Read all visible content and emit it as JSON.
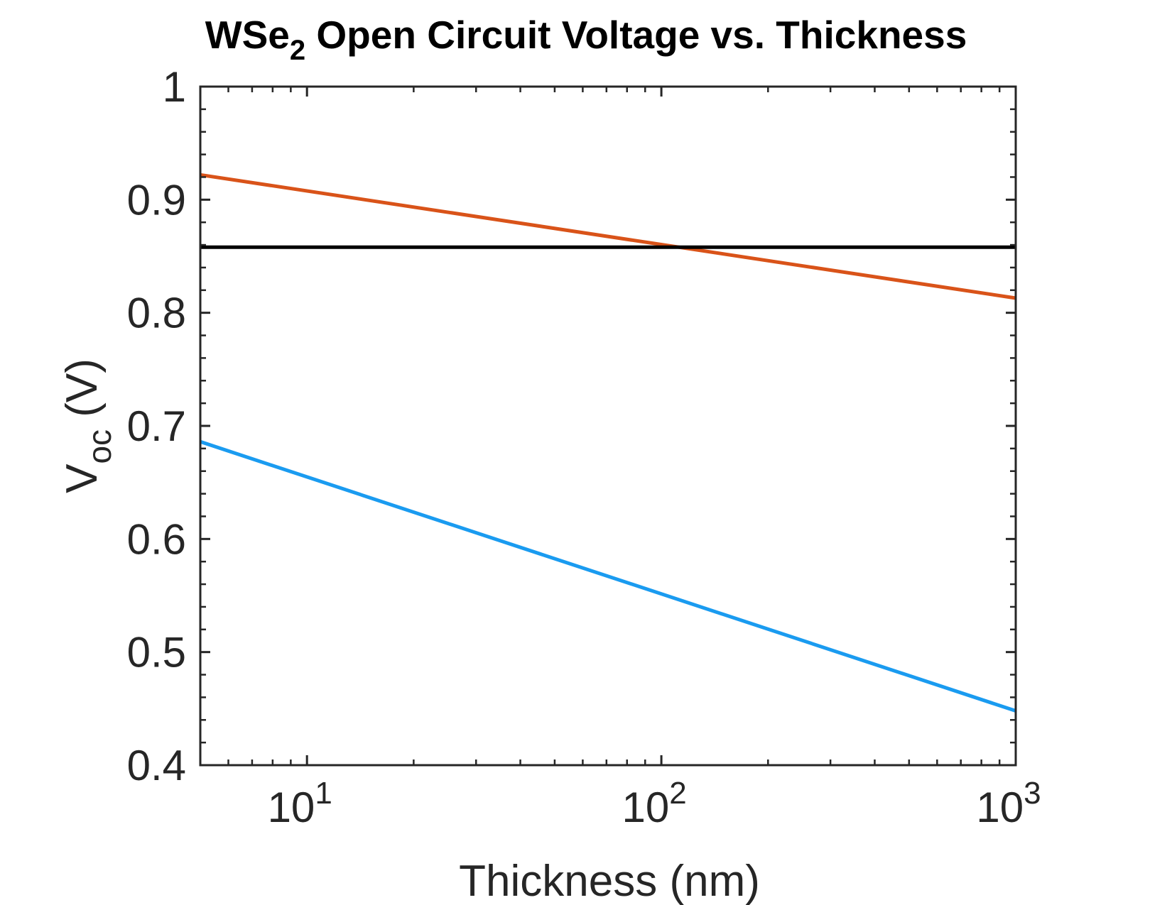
{
  "chart_data": {
    "type": "line",
    "title": {
      "prefix": "WSe",
      "subscript": "2",
      "suffix": " Open Circuit Voltage vs. Thickness"
    },
    "xlabel": "Thickness (nm)",
    "ylabel": {
      "main": "V",
      "subscript": "oc",
      "suffix": " (V)"
    },
    "xscale": "log",
    "xlim": [
      5,
      1000
    ],
    "ylim": [
      0.4,
      1.0
    ],
    "xticks": [
      {
        "base": "10",
        "exp": "1",
        "value": 10
      },
      {
        "base": "10",
        "exp": "2",
        "value": 100
      },
      {
        "base": "10",
        "exp": "3",
        "value": 1000
      }
    ],
    "yticks": [
      {
        "label": "0.4",
        "value": 0.4
      },
      {
        "label": "0.5",
        "value": 0.5
      },
      {
        "label": "0.6",
        "value": 0.6
      },
      {
        "label": "0.7",
        "value": 0.7
      },
      {
        "label": "0.8",
        "value": 0.8
      },
      {
        "label": "0.9",
        "value": 0.9
      },
      {
        "label": "1",
        "value": 1.0
      }
    ],
    "grid": false,
    "legend": "none",
    "series": [
      {
        "color": "#D95319",
        "x": [
          5,
          1000
        ],
        "y": [
          0.922,
          0.813
        ]
      },
      {
        "color": "#000000",
        "x": [
          5,
          1000
        ],
        "y": [
          0.858,
          0.858
        ]
      },
      {
        "color": "#1A9BF0",
        "x": [
          5,
          1000
        ],
        "y": [
          0.686,
          0.448
        ]
      }
    ]
  }
}
